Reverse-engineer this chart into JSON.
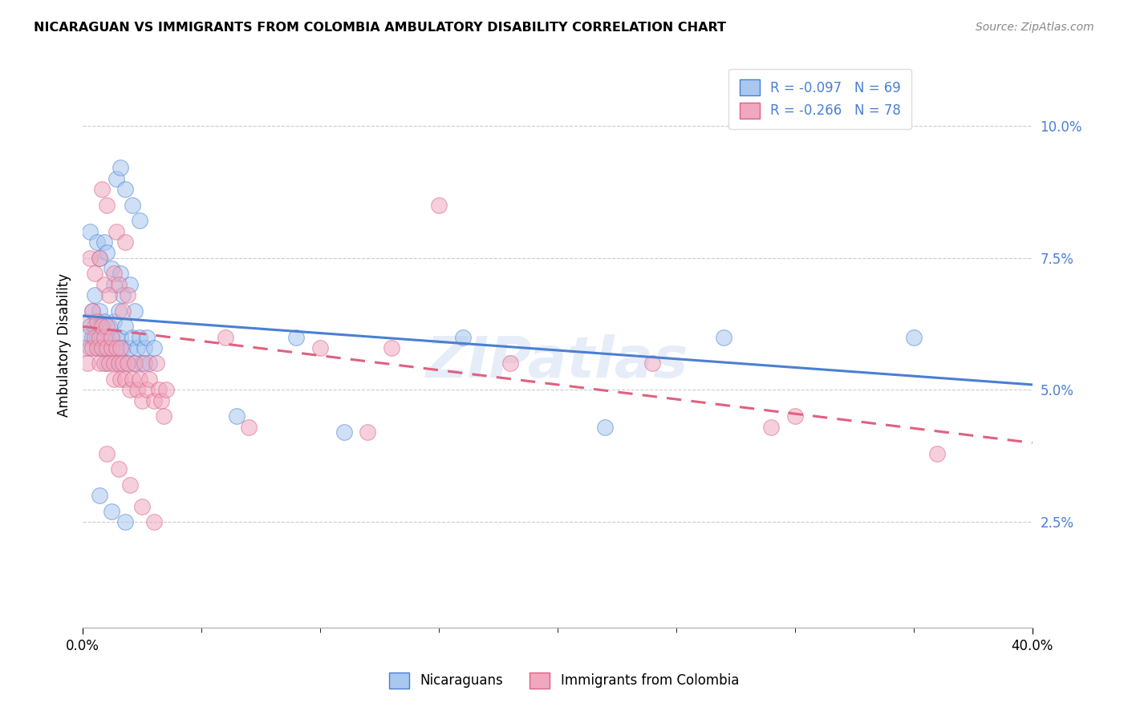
{
  "title": "NICARAGUAN VS IMMIGRANTS FROM COLOMBIA AMBULATORY DISABILITY CORRELATION CHART",
  "source": "Source: ZipAtlas.com",
  "ylabel": "Ambulatory Disability",
  "yticks": [
    0.025,
    0.05,
    0.075,
    0.1
  ],
  "ytick_labels": [
    "2.5%",
    "5.0%",
    "7.5%",
    "10.0%"
  ],
  "xlim": [
    0.0,
    0.4
  ],
  "ylim": [
    0.005,
    0.112
  ],
  "blue_color": "#a8c8f0",
  "pink_color": "#f0a8c0",
  "trendline_blue_color": "#4a7fd4",
  "trendline_pink_color": "#e06080",
  "watermark": "ZIPatlas",
  "blue_R": -0.097,
  "blue_N": 69,
  "pink_R": -0.266,
  "pink_N": 78,
  "blue_trendline": [
    0.0,
    0.4,
    0.064,
    0.051
  ],
  "pink_trendline": [
    0.0,
    0.4,
    0.062,
    0.04
  ],
  "blue_scatter": [
    [
      0.001,
      0.06
    ],
    [
      0.002,
      0.063
    ],
    [
      0.003,
      0.058
    ],
    [
      0.004,
      0.065
    ],
    [
      0.004,
      0.06
    ],
    [
      0.005,
      0.062
    ],
    [
      0.005,
      0.068
    ],
    [
      0.006,
      0.06
    ],
    [
      0.006,
      0.058
    ],
    [
      0.007,
      0.065
    ],
    [
      0.007,
      0.062
    ],
    [
      0.008,
      0.06
    ],
    [
      0.008,
      0.058
    ],
    [
      0.009,
      0.063
    ],
    [
      0.009,
      0.058
    ],
    [
      0.01,
      0.06
    ],
    [
      0.01,
      0.055
    ],
    [
      0.011,
      0.062
    ],
    [
      0.012,
      0.058
    ],
    [
      0.012,
      0.06
    ],
    [
      0.013,
      0.063
    ],
    [
      0.014,
      0.06
    ],
    [
      0.014,
      0.058
    ],
    [
      0.015,
      0.055
    ],
    [
      0.015,
      0.065
    ],
    [
      0.016,
      0.06
    ],
    [
      0.017,
      0.058
    ],
    [
      0.018,
      0.062
    ],
    [
      0.019,
      0.055
    ],
    [
      0.02,
      0.058
    ],
    [
      0.021,
      0.06
    ],
    [
      0.022,
      0.055
    ],
    [
      0.023,
      0.058
    ],
    [
      0.024,
      0.06
    ],
    [
      0.025,
      0.055
    ],
    [
      0.026,
      0.058
    ],
    [
      0.027,
      0.06
    ],
    [
      0.028,
      0.055
    ],
    [
      0.03,
      0.058
    ],
    [
      0.003,
      0.08
    ],
    [
      0.006,
      0.078
    ],
    [
      0.007,
      0.075
    ],
    [
      0.009,
      0.078
    ],
    [
      0.01,
      0.076
    ],
    [
      0.012,
      0.073
    ],
    [
      0.013,
      0.07
    ],
    [
      0.016,
      0.072
    ],
    [
      0.017,
      0.068
    ],
    [
      0.02,
      0.07
    ],
    [
      0.022,
      0.065
    ],
    [
      0.014,
      0.09
    ],
    [
      0.016,
      0.092
    ],
    [
      0.018,
      0.088
    ],
    [
      0.021,
      0.085
    ],
    [
      0.024,
      0.082
    ],
    [
      0.007,
      0.03
    ],
    [
      0.012,
      0.027
    ],
    [
      0.018,
      0.025
    ],
    [
      0.09,
      0.06
    ],
    [
      0.16,
      0.06
    ],
    [
      0.27,
      0.06
    ],
    [
      0.065,
      0.045
    ],
    [
      0.11,
      0.042
    ],
    [
      0.22,
      0.043
    ],
    [
      0.35,
      0.06
    ]
  ],
  "pink_scatter": [
    [
      0.001,
      0.058
    ],
    [
      0.002,
      0.055
    ],
    [
      0.003,
      0.062
    ],
    [
      0.004,
      0.058
    ],
    [
      0.004,
      0.065
    ],
    [
      0.005,
      0.06
    ],
    [
      0.006,
      0.063
    ],
    [
      0.006,
      0.058
    ],
    [
      0.007,
      0.06
    ],
    [
      0.007,
      0.055
    ],
    [
      0.008,
      0.062
    ],
    [
      0.008,
      0.058
    ],
    [
      0.009,
      0.055
    ],
    [
      0.009,
      0.06
    ],
    [
      0.01,
      0.058
    ],
    [
      0.01,
      0.062
    ],
    [
      0.011,
      0.055
    ],
    [
      0.012,
      0.058
    ],
    [
      0.012,
      0.06
    ],
    [
      0.013,
      0.055
    ],
    [
      0.013,
      0.052
    ],
    [
      0.014,
      0.058
    ],
    [
      0.015,
      0.055
    ],
    [
      0.016,
      0.052
    ],
    [
      0.016,
      0.058
    ],
    [
      0.017,
      0.055
    ],
    [
      0.018,
      0.052
    ],
    [
      0.019,
      0.055
    ],
    [
      0.02,
      0.05
    ],
    [
      0.021,
      0.052
    ],
    [
      0.022,
      0.055
    ],
    [
      0.023,
      0.05
    ],
    [
      0.024,
      0.052
    ],
    [
      0.025,
      0.048
    ],
    [
      0.026,
      0.055
    ],
    [
      0.027,
      0.05
    ],
    [
      0.028,
      0.052
    ],
    [
      0.03,
      0.048
    ],
    [
      0.031,
      0.055
    ],
    [
      0.032,
      0.05
    ],
    [
      0.033,
      0.048
    ],
    [
      0.034,
      0.045
    ],
    [
      0.035,
      0.05
    ],
    [
      0.003,
      0.075
    ],
    [
      0.005,
      0.072
    ],
    [
      0.007,
      0.075
    ],
    [
      0.009,
      0.07
    ],
    [
      0.011,
      0.068
    ],
    [
      0.013,
      0.072
    ],
    [
      0.015,
      0.07
    ],
    [
      0.017,
      0.065
    ],
    [
      0.019,
      0.068
    ],
    [
      0.008,
      0.088
    ],
    [
      0.01,
      0.085
    ],
    [
      0.014,
      0.08
    ],
    [
      0.018,
      0.078
    ],
    [
      0.06,
      0.06
    ],
    [
      0.1,
      0.058
    ],
    [
      0.13,
      0.058
    ],
    [
      0.18,
      0.055
    ],
    [
      0.24,
      0.055
    ],
    [
      0.3,
      0.045
    ],
    [
      0.01,
      0.038
    ],
    [
      0.015,
      0.035
    ],
    [
      0.02,
      0.032
    ],
    [
      0.025,
      0.028
    ],
    [
      0.03,
      0.025
    ],
    [
      0.07,
      0.043
    ],
    [
      0.12,
      0.042
    ],
    [
      0.36,
      0.038
    ],
    [
      0.15,
      0.085
    ],
    [
      0.29,
      0.043
    ]
  ]
}
